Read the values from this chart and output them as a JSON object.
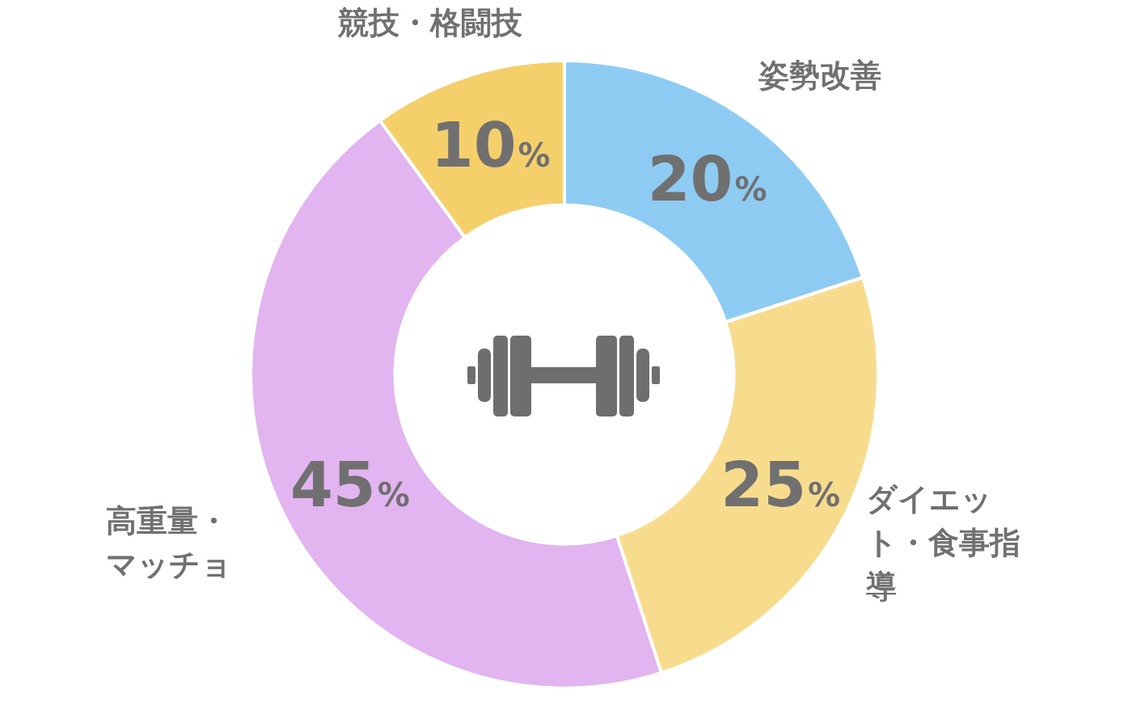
{
  "chart_data": {
    "type": "donut",
    "categories": [
      "姿勢改善",
      "ダイエット・食事指導",
      "高重量・マッチョ",
      "競技・格闘技"
    ],
    "values": [
      20,
      25,
      45,
      10
    ],
    "colors": [
      "#8ecbf3",
      "#f8dc8e",
      "#e2b4f0",
      "#f5cf6a"
    ],
    "value_labels": [
      "20%",
      "25%",
      "45%",
      "10%"
    ],
    "legend": false
  }
}
